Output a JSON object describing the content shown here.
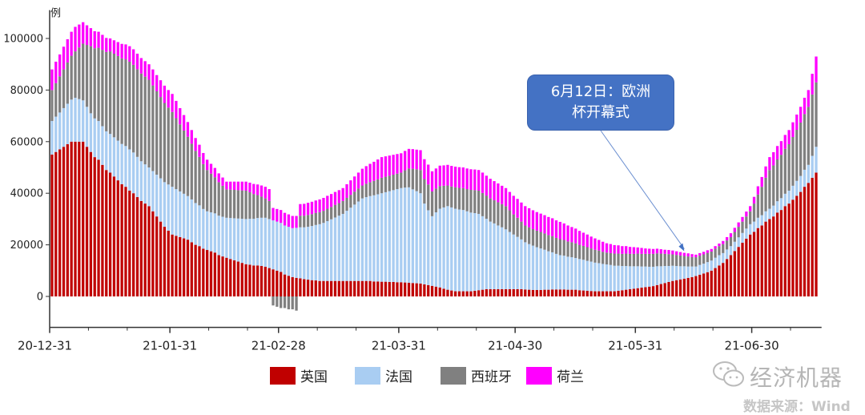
{
  "chart_data": {
    "type": "bar",
    "stacked": true,
    "frequency": "daily",
    "x_range": [
      "2020-12-31",
      "2021-07-16"
    ],
    "ylabel": "例",
    "ylim": [
      -12000,
      111000
    ],
    "yticks": [
      0,
      20000,
      40000,
      60000,
      80000,
      100000
    ],
    "ytick_labels": [
      "0",
      "20000",
      "40000",
      "60000",
      "80000",
      "100000"
    ],
    "xticks": [
      {
        "date": "2020-12-31",
        "label": "20-12-31"
      },
      {
        "date": "2021-01-31",
        "label": "21-01-31"
      },
      {
        "date": "2021-02-28",
        "label": "21-02-28"
      },
      {
        "date": "2021-03-31",
        "label": "21-03-31"
      },
      {
        "date": "2021-04-30",
        "label": "21-04-30"
      },
      {
        "date": "2021-05-31",
        "label": "21-05-31"
      },
      {
        "date": "2021-06-30",
        "label": "21-06-30"
      }
    ],
    "grid": false,
    "legend_placement": "bottom",
    "series": [
      {
        "name": "英国",
        "color": "#C00000",
        "values": [
          55000,
          56000,
          57000,
          58000,
          59000,
          60000,
          60000,
          60000,
          60000,
          58000,
          56000,
          54000,
          53000,
          51000,
          49000,
          48000,
          46500,
          45000,
          43500,
          42500,
          41000,
          40000,
          38500,
          37000,
          36000,
          35000,
          33000,
          31000,
          29000,
          27000,
          25500,
          24000,
          23500,
          23000,
          22500,
          22000,
          21000,
          20000,
          19500,
          18500,
          18000,
          17500,
          17000,
          16000,
          15500,
          15000,
          14500,
          14000,
          13500,
          13000,
          12500,
          12300,
          12000,
          12000,
          11800,
          11500,
          11000,
          10500,
          10000,
          9500,
          8500,
          8000,
          7500,
          7200,
          7000,
          6700,
          6500,
          6300,
          6200,
          6000,
          6000,
          6000,
          6000,
          6000,
          6000,
          6000,
          6000,
          6000,
          6000,
          6000,
          6000,
          6000,
          6000,
          5800,
          5800,
          5700,
          5700,
          5600,
          5600,
          5500,
          5500,
          5400,
          5300,
          5200,
          5100,
          5000,
          4700,
          4400,
          4100,
          3800,
          3500,
          3000,
          2600,
          2300,
          2000,
          2000,
          2000,
          2000,
          2000,
          2200,
          2400,
          2600,
          2800,
          2800,
          2800,
          2800,
          2800,
          2800,
          2800,
          2800,
          2800,
          2800,
          2700,
          2600,
          2500,
          2500,
          2500,
          2600,
          2600,
          2700,
          2700,
          2700,
          2700,
          2600,
          2600,
          2600,
          2400,
          2300,
          2200,
          2100,
          2000,
          2000,
          2000,
          2000,
          2000,
          2000,
          2200,
          2400,
          2600,
          2800,
          3000,
          3200,
          3400,
          3600,
          3800,
          4000,
          4400,
          4800,
          5200,
          5600,
          6000,
          6300,
          6600,
          6900,
          7200,
          7500,
          7900,
          8400,
          8900,
          9400,
          10000,
          11000,
          12000,
          13000,
          14500,
          16000,
          17600,
          19200,
          20800,
          22400,
          24000,
          25000,
          26500,
          27500,
          29000,
          30000,
          31000,
          32500,
          33500,
          35000,
          36000,
          37500,
          39000,
          40500,
          42500,
          44000,
          46000,
          48000
        ]
      },
      {
        "name": "法国",
        "color": "#A9CDF2",
        "values": [
          13000,
          13700,
          14300,
          15000,
          15700,
          16300,
          17000,
          16500,
          16000,
          15500,
          15000,
          15000,
          15000,
          15000,
          15000,
          15000,
          15200,
          15400,
          15600,
          15800,
          16000,
          15800,
          15600,
          15400,
          15200,
          15000,
          15600,
          16200,
          16800,
          17300,
          17900,
          18500,
          18100,
          17700,
          17300,
          16900,
          16600,
          16200,
          15800,
          15400,
          15000,
          15100,
          15200,
          15300,
          15400,
          15500,
          15900,
          16300,
          16700,
          17100,
          17500,
          17800,
          18100,
          18400,
          18700,
          19000,
          19000,
          19000,
          19000,
          19000,
          19000,
          19000,
          19000,
          19400,
          19800,
          20100,
          20500,
          21000,
          21500,
          22000,
          22500,
          23200,
          23900,
          24600,
          25300,
          26000,
          27200,
          28400,
          29600,
          30800,
          32000,
          32500,
          32900,
          33400,
          33800,
          34300,
          34700,
          35200,
          35600,
          36100,
          36500,
          36800,
          37000,
          36300,
          35700,
          35000,
          31300,
          29000,
          27000,
          28800,
          30500,
          31500,
          32400,
          32200,
          32000,
          31700,
          31500,
          31000,
          30500,
          30100,
          29600,
          28500,
          27300,
          26200,
          25500,
          24700,
          24000,
          23200,
          22200,
          21200,
          20300,
          19300,
          18300,
          17700,
          17200,
          16600,
          16100,
          15500,
          14900,
          14400,
          13800,
          13300,
          13100,
          12800,
          12600,
          12300,
          12100,
          11900,
          11600,
          11400,
          11100,
          10900,
          10600,
          10400,
          10200,
          9900,
          9700,
          9400,
          9200,
          8900,
          8700,
          8500,
          8200,
          8000,
          7700,
          7500,
          7300,
          6900,
          6600,
          6200,
          5900,
          5500,
          5100,
          4800,
          4400,
          4100,
          3700,
          3800,
          3800,
          3900,
          3900,
          4000,
          4000,
          3800,
          3700,
          3500,
          3600,
          3700,
          3800,
          3900,
          4000,
          4000,
          4000,
          4000,
          4000,
          4000,
          4200,
          4400,
          4600,
          4800,
          5000,
          5400,
          5800,
          6200,
          6600,
          7000,
          8500,
          10000
        ]
      },
      {
        "name": "西班牙",
        "color": "#808080",
        "values": [
          12000,
          13000,
          14000,
          15000,
          16000,
          17000,
          18000,
          20000,
          22000,
          24000,
          26000,
          27200,
          28400,
          29600,
          30800,
          32000,
          32400,
          32800,
          33200,
          33600,
          34000,
          34000,
          34000,
          34000,
          34000,
          34000,
          33200,
          32300,
          31500,
          30700,
          29800,
          29000,
          27500,
          26000,
          24500,
          23000,
          21600,
          20200,
          18800,
          17400,
          16000,
          15000,
          14000,
          13000,
          12000,
          11000,
          11000,
          11000,
          11000,
          11000,
          11000,
          10300,
          9600,
          8900,
          8200,
          7500,
          7000,
          -3500,
          -4000,
          -4500,
          -4500,
          -5000,
          -5000,
          -5500,
          4500,
          4500,
          4600,
          4600,
          4700,
          4700,
          4700,
          4800,
          4800,
          4900,
          4900,
          5000,
          5000,
          5000,
          5000,
          5000,
          5000,
          5200,
          5400,
          5600,
          5800,
          6000,
          6000,
          6000,
          6000,
          6000,
          6000,
          6700,
          7300,
          8000,
          8500,
          9000,
          9500,
          10000,
          9600,
          9200,
          8800,
          8400,
          8000,
          8100,
          8300,
          8400,
          8500,
          8600,
          8800,
          8900,
          9000,
          9000,
          9000,
          9000,
          9000,
          9000,
          9000,
          9000,
          8400,
          7800,
          7400,
          6900,
          6500,
          6500,
          6400,
          6400,
          6400,
          6300,
          6300,
          6300,
          6200,
          6200,
          6100,
          5900,
          5800,
          5700,
          5500,
          5400,
          5300,
          5100,
          5000,
          4900,
          4700,
          4600,
          4600,
          4700,
          4700,
          4700,
          4800,
          4800,
          4800,
          4900,
          4900,
          4900,
          5000,
          5000,
          5000,
          4900,
          4700,
          4600,
          4400,
          4300,
          4200,
          4000,
          3900,
          3700,
          3600,
          3600,
          3600,
          3600,
          3500,
          3500,
          3500,
          3500,
          3500,
          3500,
          3800,
          4100,
          4400,
          4700,
          5000,
          7000,
          9000,
          11000,
          13000,
          15000,
          15600,
          16200,
          16800,
          17400,
          18000,
          18900,
          19800,
          20700,
          21600,
          22500,
          23800,
          25000
        ]
      },
      {
        "name": "荷兰",
        "color": "#FF00FF",
        "values": [
          8000,
          8300,
          8500,
          8800,
          9000,
          9300,
          9500,
          8900,
          8300,
          7600,
          7000,
          6600,
          6200,
          5800,
          5400,
          5000,
          5200,
          5400,
          5600,
          5800,
          6000,
          6000,
          6000,
          6000,
          6000,
          6000,
          6200,
          6300,
          6500,
          6700,
          6800,
          7000,
          6700,
          6300,
          6000,
          5700,
          5300,
          5000,
          4700,
          4300,
          4000,
          3800,
          3600,
          3400,
          3200,
          3000,
          3100,
          3200,
          3300,
          3400,
          3500,
          3700,
          3900,
          4100,
          4300,
          4500,
          4600,
          4800,
          4900,
          5000,
          4900,
          4800,
          4700,
          4600,
          4500,
          4600,
          4700,
          4800,
          4800,
          4900,
          5000,
          5000,
          5000,
          5000,
          5000,
          5000,
          5300,
          5600,
          5900,
          6200,
          6500,
          6800,
          7100,
          7400,
          7700,
          8000,
          7900,
          7800,
          7700,
          7600,
          7500,
          7500,
          7600,
          7600,
          7600,
          7700,
          7700,
          7700,
          7800,
          7800,
          7900,
          7900,
          8000,
          8000,
          8000,
          8000,
          8000,
          8000,
          8000,
          8000,
          8000,
          7900,
          7700,
          7600,
          7400,
          7300,
          7100,
          7000,
          7100,
          7200,
          7300,
          7400,
          7500,
          7400,
          7300,
          7200,
          7100,
          7100,
          7000,
          6900,
          6800,
          6700,
          6400,
          6200,
          5900,
          5700,
          5400,
          5100,
          4900,
          4600,
          4400,
          4100,
          3900,
          3600,
          3500,
          3300,
          3200,
          3000,
          2900,
          2700,
          2600,
          2400,
          2300,
          2100,
          2000,
          1900,
          1800,
          1700,
          1600,
          1600,
          1500,
          1400,
          1300,
          1200,
          1200,
          1100,
          1000,
          1000,
          1000,
          1000,
          1000,
          1000,
          1000,
          1200,
          1300,
          1500,
          1600,
          1700,
          1800,
          1900,
          2000,
          2600,
          3200,
          3800,
          4400,
          5000,
          5100,
          5200,
          5300,
          5400,
          5500,
          5700,
          5900,
          6100,
          6300,
          6500,
          8000,
          10000
        ]
      }
    ],
    "annotation": {
      "date": "2021-06-12",
      "lines": [
        "6月12日：欧洲",
        "杯开幕式"
      ],
      "box_color": "#4472C4"
    }
  },
  "watermark": {
    "name": "经济机器",
    "icon": "wechat-icon",
    "source": "数据来源：Wind"
  }
}
